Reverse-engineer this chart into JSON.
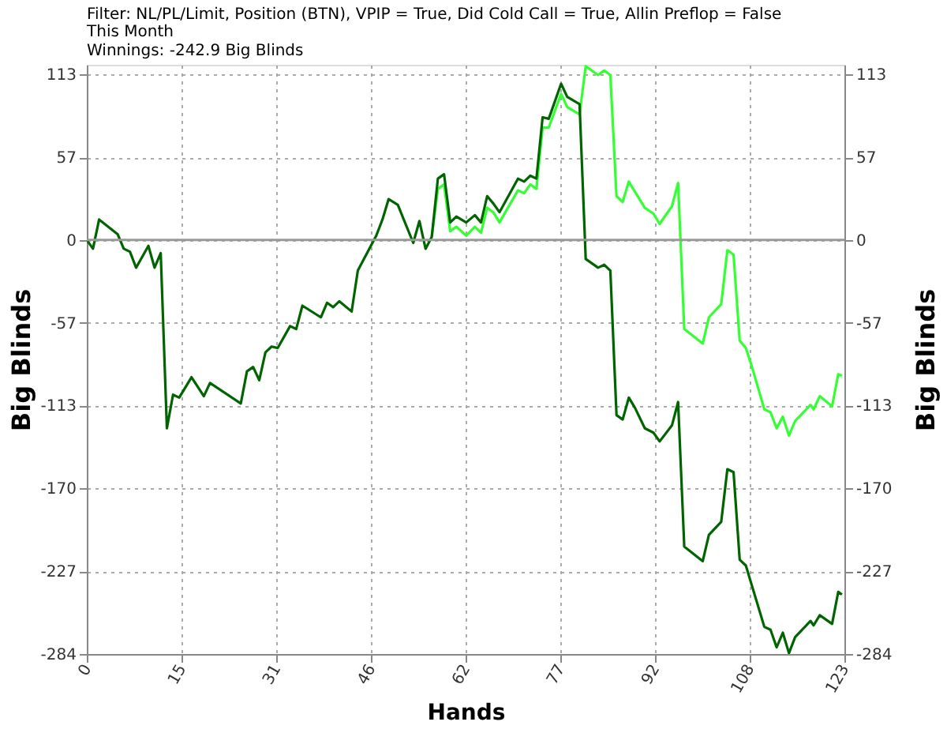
{
  "chart_data": {
    "type": "line",
    "title": "Filter: NL/PL/Limit, Position (BTN), VPIP = True, Did Cold Call = True, Allin Preflop = False",
    "subtitle": "This Month",
    "annotations": [
      "Winnings: -242.9 Big Blinds"
    ],
    "xlabel": "Hands",
    "ylabel": "Big Blinds",
    "y2label": "Big Blinds",
    "xlim": [
      0,
      123
    ],
    "xticks": [
      0,
      {
        "value": 15.375,
        "label": "15"
      },
      {
        "value": 30.75,
        "label": "31"
      },
      {
        "value": 46.125,
        "label": "46"
      },
      {
        "value": 61.5,
        "label": "62"
      },
      {
        "value": 76.875,
        "label": "77"
      },
      {
        "value": 92.25,
        "label": "92"
      },
      {
        "value": 107.625,
        "label": "108"
      },
      123
    ],
    "ylim": [
      -283.6,
      120
    ],
    "yticks": [
      {
        "value": -283.6,
        "label": "-284"
      },
      {
        "value": -226.9,
        "label": "-227"
      },
      {
        "value": -170.1,
        "label": "-170"
      },
      {
        "value": -113.4,
        "label": "-113"
      },
      {
        "value": -56.7,
        "label": "-57"
      },
      0,
      {
        "value": 56.7,
        "label": "57"
      },
      {
        "value": 113.4,
        "label": "113"
      }
    ],
    "y2lim": [
      -283.6,
      120
    ],
    "y2ticks": [
      {
        "value": -283.6,
        "label": "-284"
      },
      {
        "value": -226.9,
        "label": "-227"
      },
      {
        "value": -170.1,
        "label": "-170"
      },
      {
        "value": -113.4,
        "label": "-113"
      },
      {
        "value": -56.7,
        "label": "-57"
      },
      0,
      {
        "value": 56.7,
        "label": "57"
      },
      {
        "value": 113.4,
        "label": "113"
      }
    ],
    "grid": true,
    "marker": "none",
    "line_style": "solid",
    "ref_lines": [
      {
        "axis": "y",
        "value": 0,
        "color": "#999999"
      }
    ],
    "series": [
      {
        "color": "#33ff33",
        "x": [
          56,
          57,
          58,
          59,
          60,
          61.6,
          63,
          64,
          65,
          66,
          67,
          70,
          71,
          72,
          73,
          74,
          75,
          77,
          78,
          80,
          81,
          83,
          84,
          85,
          86,
          87,
          88,
          89,
          90.6,
          92,
          93,
          95,
          96,
          97,
          100,
          101,
          103,
          104,
          105,
          106,
          107,
          108,
          110,
          111,
          112,
          113,
          114,
          115,
          117.5,
          118,
          119,
          121,
          122,
          122.6
        ],
        "values": [
          2,
          35,
          38,
          6,
          9,
          3,
          9,
          5,
          22,
          19,
          12,
          34,
          32,
          38,
          35,
          77,
          77,
          100,
          91,
          86,
          119,
          113,
          116,
          113,
          30,
          26,
          40,
          33,
          22,
          18,
          11,
          23,
          39,
          -61,
          -71,
          -53,
          -44,
          -7,
          -10,
          -69,
          -74,
          -87,
          -116,
          -118,
          -129,
          -121,
          -134,
          -124,
          -113,
          -116,
          -107,
          -114,
          -92,
          -93
        ]
      },
      {
        "color": "#006400",
        "x": [
          0,
          1,
          2,
          5,
          6,
          7,
          8,
          10,
          11,
          12,
          13,
          14,
          15,
          17,
          19,
          20,
          25,
          26,
          27,
          28,
          29,
          30,
          31,
          33,
          34,
          35,
          38,
          39,
          40,
          41,
          43,
          44,
          46,
          47,
          48,
          49,
          50.5,
          53,
          54,
          55,
          56,
          57,
          58,
          59,
          60,
          61.6,
          63,
          64,
          65,
          66,
          67,
          70,
          71,
          72,
          73,
          74,
          75,
          77,
          78,
          80,
          81,
          83,
          84,
          85,
          86,
          87,
          88,
          89,
          90.6,
          92,
          93,
          95,
          96,
          97,
          100,
          101,
          103,
          104,
          105,
          106,
          107,
          108,
          110,
          111,
          112,
          113,
          114,
          115,
          117.5,
          118,
          119,
          121,
          122,
          122.6
        ],
        "values": [
          0,
          -6,
          14,
          4,
          -6,
          -8,
          -19,
          -4,
          -19,
          -9,
          -129,
          -106,
          -108,
          -94,
          -107,
          -98,
          -112,
          -90,
          -87,
          -96,
          -77,
          -73,
          -74,
          -59,
          -61,
          -45,
          -53,
          -43,
          -46,
          -42,
          -49,
          -21,
          -5,
          3,
          14,
          28,
          24,
          -2,
          13,
          -6,
          2,
          42,
          45,
          12,
          16,
          12,
          17,
          12,
          30,
          25,
          19,
          42,
          40,
          44,
          42,
          84,
          83,
          107,
          98,
          93,
          -13,
          -19,
          -17,
          -21,
          -120,
          -123,
          -108,
          -115,
          -129,
          -132,
          -138,
          -127,
          -111,
          -210,
          -220,
          -202,
          -193,
          -157,
          -159,
          -219,
          -223,
          -237,
          -265,
          -267,
          -279,
          -269,
          -283,
          -272,
          -261,
          -264,
          -257,
          -263,
          -241,
          -242.9
        ]
      }
    ]
  }
}
